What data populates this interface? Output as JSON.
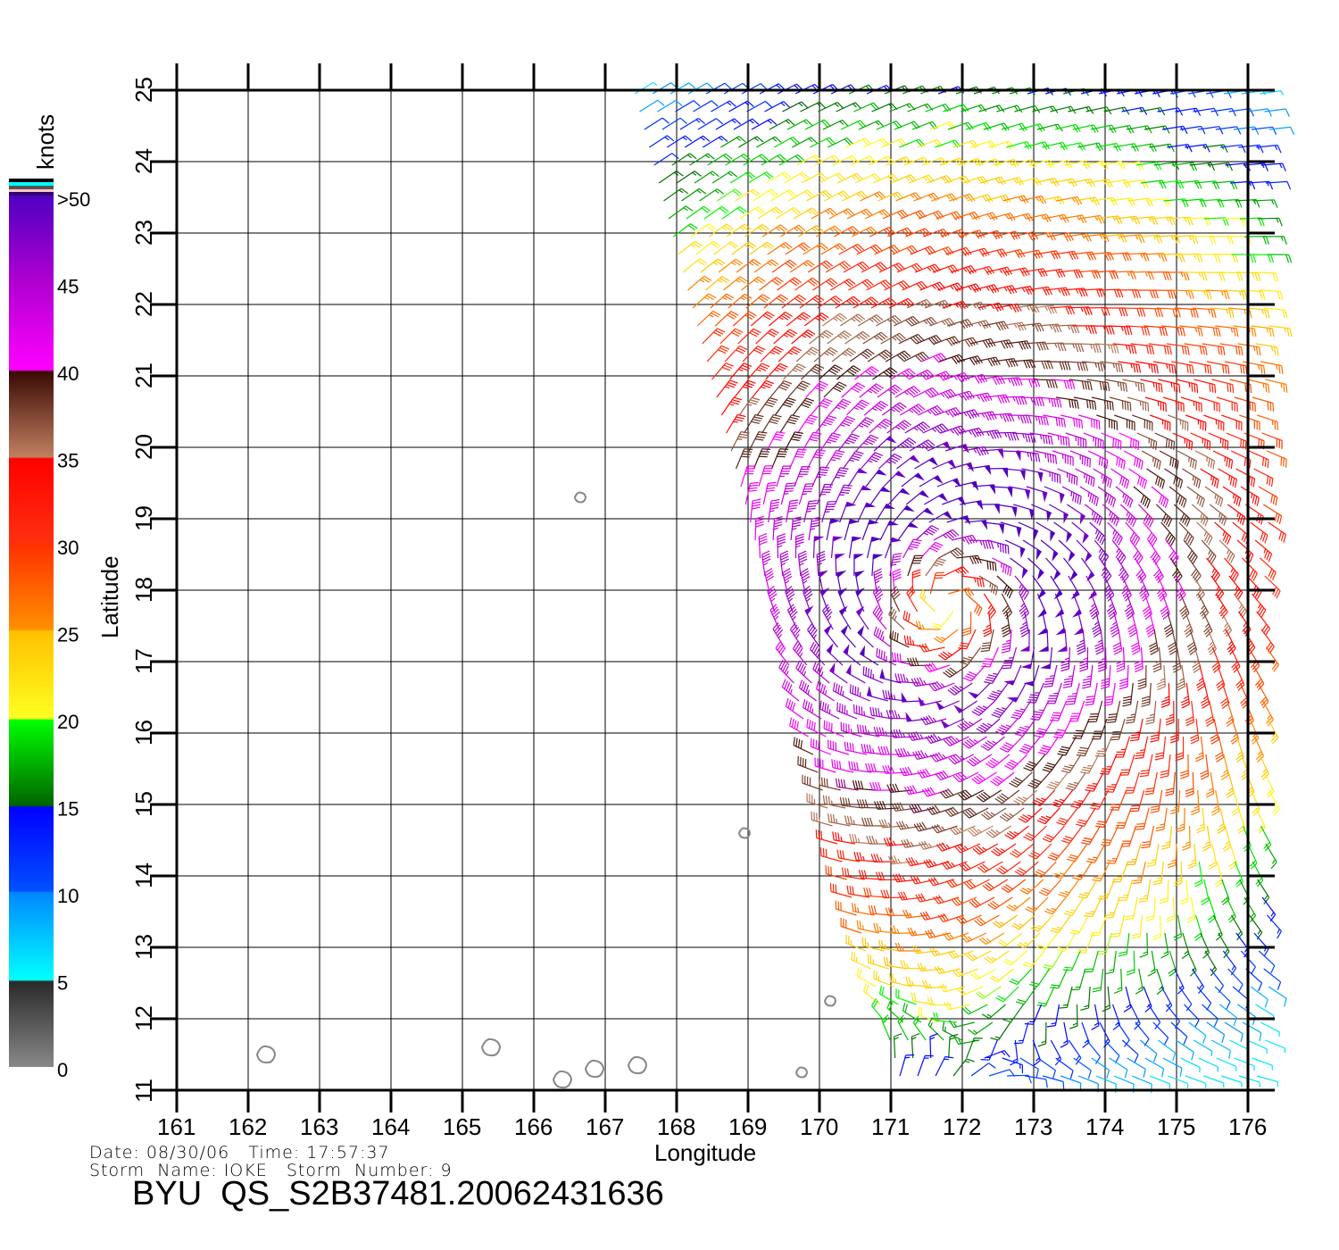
{
  "colorbar": {
    "unit_label": "knots",
    "labels": [
      ">50",
      "45",
      "40",
      "35",
      "30",
      "25",
      "20",
      "15",
      "10",
      "5",
      "0"
    ],
    "stops": [
      {
        "kt": 0,
        "color": "#888888"
      },
      {
        "kt": 4.9,
        "color": "#2a2a2a"
      },
      {
        "kt": 5,
        "color": "#00ffff"
      },
      {
        "kt": 10,
        "color": "#0088ff"
      },
      {
        "kt": 10.1,
        "color": "#0050ff"
      },
      {
        "kt": 14.9,
        "color": "#0000ff"
      },
      {
        "kt": 15,
        "color": "#006400"
      },
      {
        "kt": 19.9,
        "color": "#00ff00"
      },
      {
        "kt": 20,
        "color": "#ffff20"
      },
      {
        "kt": 25,
        "color": "#ffc000"
      },
      {
        "kt": 25.1,
        "color": "#ff9000"
      },
      {
        "kt": 30,
        "color": "#ff3000"
      },
      {
        "kt": 30.1,
        "color": "#ff3010"
      },
      {
        "kt": 34.9,
        "color": "#ff0000"
      },
      {
        "kt": 35,
        "color": "#c08060"
      },
      {
        "kt": 39.9,
        "color": "#3a0a05"
      },
      {
        "kt": 40,
        "color": "#ff00ff"
      },
      {
        "kt": 45,
        "color": "#b000d0"
      },
      {
        "kt": 50,
        "color": "#5000c0"
      }
    ]
  },
  "chart_data": {
    "type": "wind-barb-map",
    "xlabel": "Longitude",
    "ylabel": "Latitude",
    "xlim": [
      161,
      176
    ],
    "ylim": [
      11,
      25
    ],
    "x_ticks": [
      "161",
      "162",
      "163",
      "164",
      "165",
      "166",
      "167",
      "168",
      "169",
      "170",
      "171",
      "172",
      "173",
      "174",
      "175",
      "176"
    ],
    "y_ticks": [
      "11",
      "12",
      "13",
      "14",
      "15",
      "16",
      "17",
      "18",
      "19",
      "20",
      "21",
      "22",
      "23",
      "24",
      "25"
    ],
    "grid": true,
    "wind_field": {
      "storm_center_lon": 171.8,
      "storm_center_lat": 17.8,
      "max_wind_kt": 50,
      "grid_spacing_deg": 0.25,
      "swath_west_lon_at_25N": 167.4,
      "swath_west_slope_deg_per_deg_lat": 0.27,
      "swath_east_lon": 176.3
    },
    "islands": [
      {
        "lon": 162.25,
        "lat": 11.5
      },
      {
        "lon": 165.4,
        "lat": 11.6
      },
      {
        "lon": 166.4,
        "lat": 11.15
      },
      {
        "lon": 166.85,
        "lat": 11.3
      },
      {
        "lon": 167.45,
        "lat": 11.35
      },
      {
        "lon": 169.75,
        "lat": 11.25
      },
      {
        "lon": 170.15,
        "lat": 12.25
      },
      {
        "lon": 168.95,
        "lat": 14.6
      },
      {
        "lon": 166.65,
        "lat": 19.3
      }
    ]
  },
  "info": {
    "date_line": "Date: 08/30/06   Time: 17:57:37",
    "storm_line": "Storm  Name: IOKE   Storm  Number: 9",
    "product_id": "BYU  QS_S2B37481.20062431636"
  }
}
